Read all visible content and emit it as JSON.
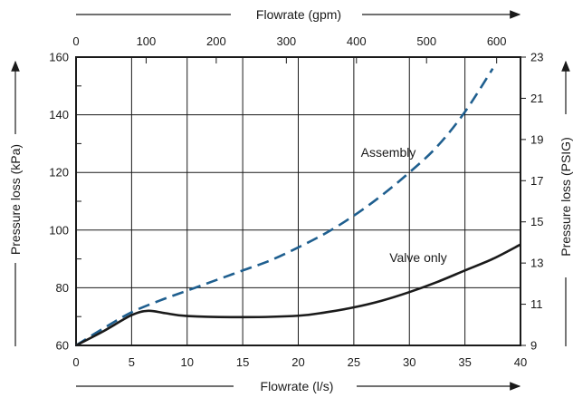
{
  "chart_data": {
    "type": "line",
    "x_axis": {
      "label": "Flowrate (l/s)",
      "range": [
        0,
        40
      ],
      "ticks": [
        0,
        5,
        10,
        15,
        20,
        25,
        30,
        35,
        40
      ]
    },
    "x2_axis": {
      "label": "Flowrate (gpm)",
      "range": [
        0,
        634
      ],
      "ticks": [
        0,
        100,
        200,
        300,
        400,
        500,
        600
      ]
    },
    "y_axis": {
      "label": "Pressure loss (kPa)",
      "range": [
        60,
        160
      ],
      "ticks": [
        60,
        80,
        100,
        120,
        140,
        160
      ]
    },
    "y2_axis": {
      "label": "Pressure loss (PSIG)",
      "range": [
        9,
        23
      ],
      "ticks": [
        9,
        11,
        13,
        15,
        17,
        19,
        21,
        23
      ]
    },
    "grid": true,
    "series": [
      {
        "name": "Assembly",
        "style": "dashed",
        "color": "#1f5f8f",
        "x": [
          0,
          2.5,
          5,
          7.5,
          10,
          12.5,
          15,
          17.5,
          20,
          22.5,
          25,
          27.5,
          30,
          32.5,
          35,
          37.5
        ],
        "y": [
          60,
          66,
          71.5,
          75.5,
          79,
          82.5,
          86,
          89.5,
          94,
          99,
          105,
          112,
          120,
          129,
          141,
          156
        ]
      },
      {
        "name": "Valve only",
        "style": "solid",
        "color": "#1a1a1a",
        "x": [
          0,
          2.5,
          5,
          6.5,
          8,
          10,
          15,
          20,
          22.5,
          25,
          27.5,
          30,
          32.5,
          35,
          37.5,
          40
        ],
        "y": [
          60,
          65,
          70.5,
          72,
          71.2,
          70.2,
          69.8,
          70.3,
          71.5,
          73.2,
          75.5,
          78.5,
          82,
          86,
          90,
          95
        ]
      }
    ]
  }
}
